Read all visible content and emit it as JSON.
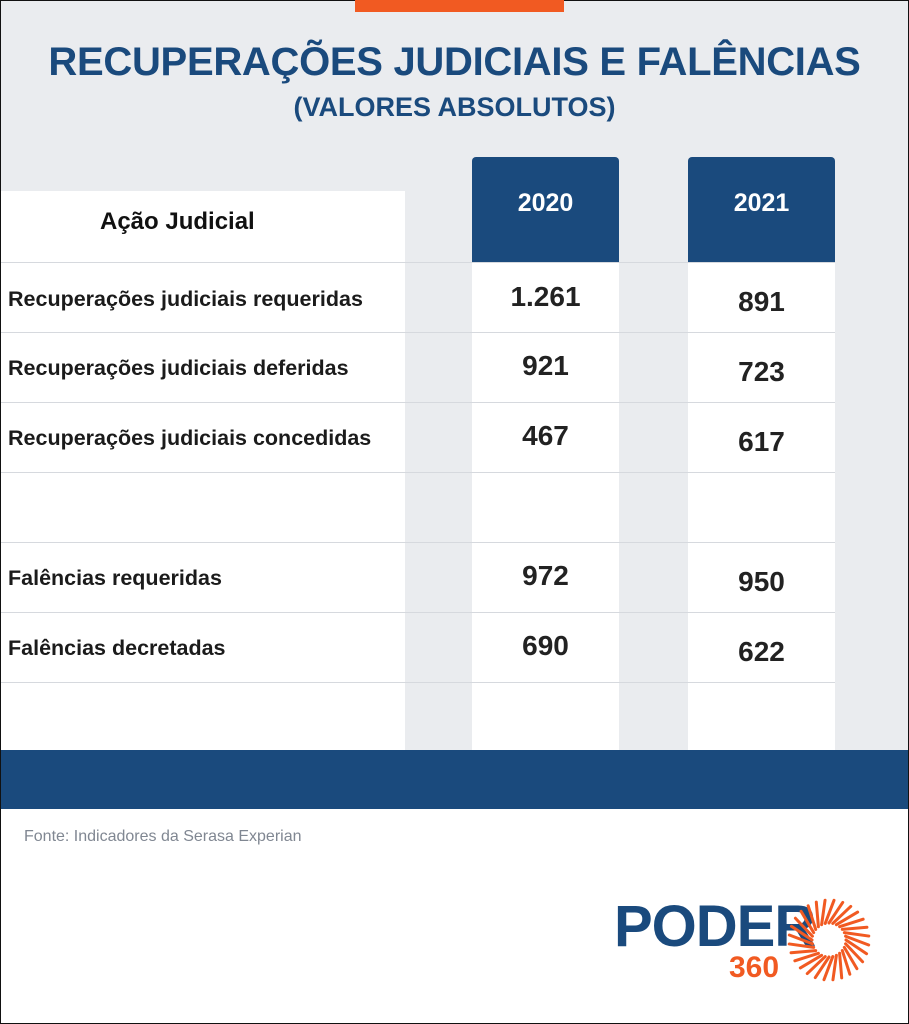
{
  "title": "RECUPERAÇÕES JUDICIAIS E FALÊNCIAS",
  "subtitle": "(VALORES ABSOLUTOS)",
  "source": "Fonte: Indicadores da Serasa Experian",
  "logo": {
    "name": "PODER",
    "number": "360",
    "icon": "sunburst-icon"
  },
  "colors": {
    "navy": "#1a4a7d",
    "orange": "#f15a22",
    "light_bg": "#eaecef"
  },
  "chart_data": {
    "type": "table",
    "title": "RECUPERAÇÕES JUDICIAIS E FALÊNCIAS",
    "subtitle": "(VALORES ABSOLUTOS)",
    "header": {
      "label": "Ação Judicial",
      "years": [
        "2020",
        "2021"
      ]
    },
    "rows": [
      {
        "label": "Recuperações judiciais requeridas",
        "values": [
          "1.261",
          "891"
        ]
      },
      {
        "label": "Recuperações judiciais deferidas",
        "values": [
          "921",
          "723"
        ]
      },
      {
        "label": "Recuperações judiciais concedidas",
        "values": [
          "467",
          "617"
        ]
      },
      {
        "label": "",
        "values": [
          "",
          ""
        ]
      },
      {
        "label": "Falências requeridas",
        "values": [
          "972",
          "950"
        ]
      },
      {
        "label": "Falências decretadas",
        "values": [
          "690",
          "622"
        ]
      }
    ]
  }
}
